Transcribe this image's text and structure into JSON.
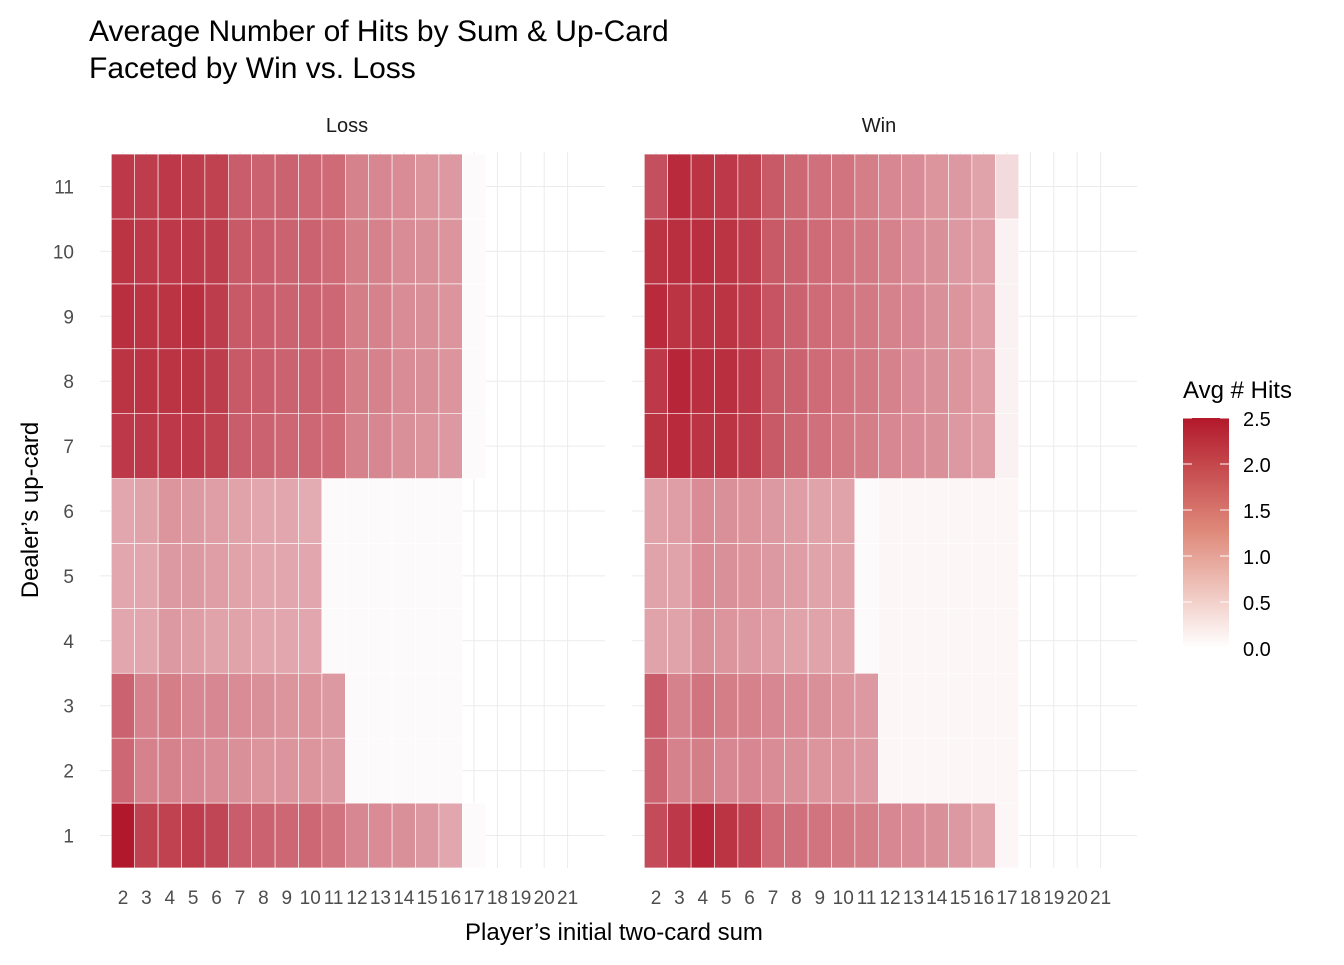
{
  "chart_data": {
    "type": "heatmap",
    "title": "Average Number of Hits by Sum & Up-Card",
    "subtitle": "Faceted by Win vs. Loss",
    "xlabel": "Player’s initial two-card sum",
    "ylabel": "Dealer’s up-card",
    "x": [
      2,
      3,
      4,
      5,
      6,
      7,
      8,
      9,
      10,
      11,
      12,
      13,
      14,
      15,
      16,
      17,
      18,
      19,
      20,
      21
    ],
    "x_tick_labels": [
      "2",
      "3",
      "4",
      "5",
      "6",
      "7",
      "8",
      "9",
      "10",
      "11",
      "12",
      "13",
      "14",
      "15",
      "16",
      "17",
      "18",
      "19",
      "20",
      "21"
    ],
    "y": [
      1,
      2,
      3,
      4,
      5,
      6,
      7,
      8,
      9,
      10,
      11
    ],
    "y_tick_labels": [
      "1",
      "2",
      "3",
      "4",
      "5",
      "6",
      "7",
      "8",
      "9",
      "10",
      "11"
    ],
    "legend": {
      "title": "Avg # Hits",
      "position": "right",
      "ticks": [
        "2.5",
        "2.0",
        "1.5",
        "1.0",
        "0.5",
        "0.0"
      ],
      "range": [
        0,
        2.5
      ],
      "low_color": "#ffffff",
      "high_color": "#b2182b"
    },
    "grid": true,
    "facets": [
      {
        "name": "Loss",
        "values": [
          [
            2.55,
            2.05,
            2.05,
            2.1,
            2.0,
            1.75,
            1.7,
            1.65,
            1.65,
            1.5,
            1.3,
            1.25,
            1.2,
            1.1,
            0.95,
            0.05,
            0.0,
            0.0,
            0.0,
            0.0
          ],
          [
            1.65,
            1.35,
            1.35,
            1.3,
            1.25,
            1.2,
            1.15,
            1.15,
            1.15,
            1.1,
            0.05,
            0.05,
            0.05,
            0.05,
            0.05,
            0.0,
            0.0,
            0.0,
            0.0,
            0.0
          ],
          [
            1.7,
            1.35,
            1.4,
            1.3,
            1.3,
            1.25,
            1.2,
            1.15,
            1.15,
            1.1,
            0.05,
            0.05,
            0.05,
            0.05,
            0.05,
            0.0,
            0.0,
            0.0,
            0.0,
            0.0
          ],
          [
            0.95,
            0.95,
            1.1,
            1.05,
            1.0,
            1.0,
            0.95,
            0.95,
            0.95,
            0.05,
            0.05,
            0.05,
            0.05,
            0.05,
            0.05,
            0.0,
            0.0,
            0.0,
            0.0,
            0.0
          ],
          [
            0.95,
            0.95,
            1.1,
            1.1,
            1.05,
            1.0,
            0.95,
            0.95,
            0.95,
            0.05,
            0.05,
            0.05,
            0.05,
            0.05,
            0.05,
            0.0,
            0.0,
            0.0,
            0.0,
            0.0
          ],
          [
            0.95,
            1.0,
            1.15,
            1.1,
            1.05,
            1.0,
            0.95,
            0.95,
            0.9,
            0.05,
            0.05,
            0.05,
            0.05,
            0.05,
            0.05,
            0.0,
            0.0,
            0.0,
            0.0,
            0.0
          ],
          [
            2.15,
            2.15,
            2.15,
            2.15,
            2.05,
            1.75,
            1.7,
            1.65,
            1.65,
            1.6,
            1.35,
            1.3,
            1.2,
            1.15,
            1.1,
            0.05,
            0.0,
            0.0,
            0.0,
            0.0
          ],
          [
            2.2,
            2.2,
            2.2,
            2.2,
            2.1,
            1.8,
            1.75,
            1.7,
            1.7,
            1.65,
            1.4,
            1.35,
            1.25,
            1.2,
            1.15,
            0.05,
            0.0,
            0.0,
            0.0,
            0.0
          ],
          [
            2.25,
            2.2,
            2.2,
            2.25,
            2.1,
            1.8,
            1.75,
            1.7,
            1.7,
            1.65,
            1.4,
            1.35,
            1.25,
            1.2,
            1.15,
            0.05,
            0.0,
            0.0,
            0.0,
            0.0
          ],
          [
            2.2,
            2.15,
            2.15,
            2.15,
            2.1,
            1.8,
            1.75,
            1.7,
            1.7,
            1.6,
            1.4,
            1.35,
            1.25,
            1.2,
            1.15,
            0.05,
            0.0,
            0.0,
            0.0,
            0.0
          ],
          [
            2.15,
            2.1,
            2.15,
            2.1,
            2.05,
            1.75,
            1.7,
            1.7,
            1.65,
            1.6,
            1.35,
            1.3,
            1.25,
            1.15,
            1.1,
            0.05,
            0.0,
            0.0,
            0.0,
            0.0
          ]
        ]
      },
      {
        "name": "Win",
        "values": [
          [
            1.95,
            2.15,
            2.35,
            2.2,
            2.05,
            1.6,
            1.55,
            1.5,
            1.45,
            1.4,
            1.3,
            1.25,
            1.2,
            1.1,
            1.0,
            0.1,
            0.0,
            0.0,
            0.0,
            0.0
          ],
          [
            1.7,
            1.35,
            1.4,
            1.3,
            1.3,
            1.25,
            1.2,
            1.15,
            1.15,
            1.1,
            0.1,
            0.1,
            0.1,
            0.1,
            0.1,
            0.1,
            0.0,
            0.0,
            0.0,
            0.0
          ],
          [
            1.75,
            1.35,
            1.5,
            1.4,
            1.35,
            1.3,
            1.25,
            1.2,
            1.15,
            1.1,
            0.1,
            0.1,
            0.1,
            0.1,
            0.1,
            0.1,
            0.0,
            0.0,
            0.0,
            0.0
          ],
          [
            1.0,
            1.0,
            1.2,
            1.15,
            1.1,
            1.05,
            1.0,
            1.0,
            1.0,
            0.05,
            0.1,
            0.1,
            0.1,
            0.1,
            0.1,
            0.1,
            0.0,
            0.0,
            0.0,
            0.0
          ],
          [
            1.0,
            1.0,
            1.25,
            1.2,
            1.15,
            1.1,
            1.05,
            1.0,
            1.0,
            0.05,
            0.1,
            0.1,
            0.1,
            0.1,
            0.1,
            0.1,
            0.0,
            0.0,
            0.0,
            0.0
          ],
          [
            1.0,
            1.05,
            1.25,
            1.2,
            1.15,
            1.1,
            1.05,
            1.0,
            1.0,
            0.05,
            0.1,
            0.1,
            0.1,
            0.1,
            0.1,
            0.1,
            0.0,
            0.0,
            0.0,
            0.0
          ],
          [
            2.2,
            2.3,
            2.2,
            2.2,
            2.1,
            1.8,
            1.65,
            1.55,
            1.45,
            1.4,
            1.3,
            1.25,
            1.2,
            1.1,
            1.05,
            0.15,
            0.0,
            0.0,
            0.0,
            0.0
          ],
          [
            2.15,
            2.35,
            2.25,
            2.25,
            2.15,
            1.8,
            1.7,
            1.6,
            1.5,
            1.45,
            1.35,
            1.25,
            1.2,
            1.15,
            1.05,
            0.15,
            0.0,
            0.0,
            0.0,
            0.0
          ],
          [
            2.3,
            2.2,
            2.2,
            2.2,
            2.1,
            1.85,
            1.7,
            1.6,
            1.5,
            1.45,
            1.35,
            1.3,
            1.2,
            1.15,
            1.05,
            0.15,
            0.0,
            0.0,
            0.0,
            0.0
          ],
          [
            2.2,
            2.25,
            2.25,
            2.2,
            2.1,
            1.8,
            1.7,
            1.6,
            1.5,
            1.45,
            1.35,
            1.25,
            1.2,
            1.1,
            1.05,
            0.15,
            0.0,
            0.0,
            0.0,
            0.0
          ],
          [
            1.9,
            2.3,
            2.2,
            2.15,
            2.05,
            1.8,
            1.65,
            1.55,
            1.5,
            1.4,
            1.3,
            1.25,
            1.15,
            1.1,
            1.0,
            0.4,
            0.0,
            0.0,
            0.0,
            0.0
          ]
        ]
      }
    ]
  }
}
